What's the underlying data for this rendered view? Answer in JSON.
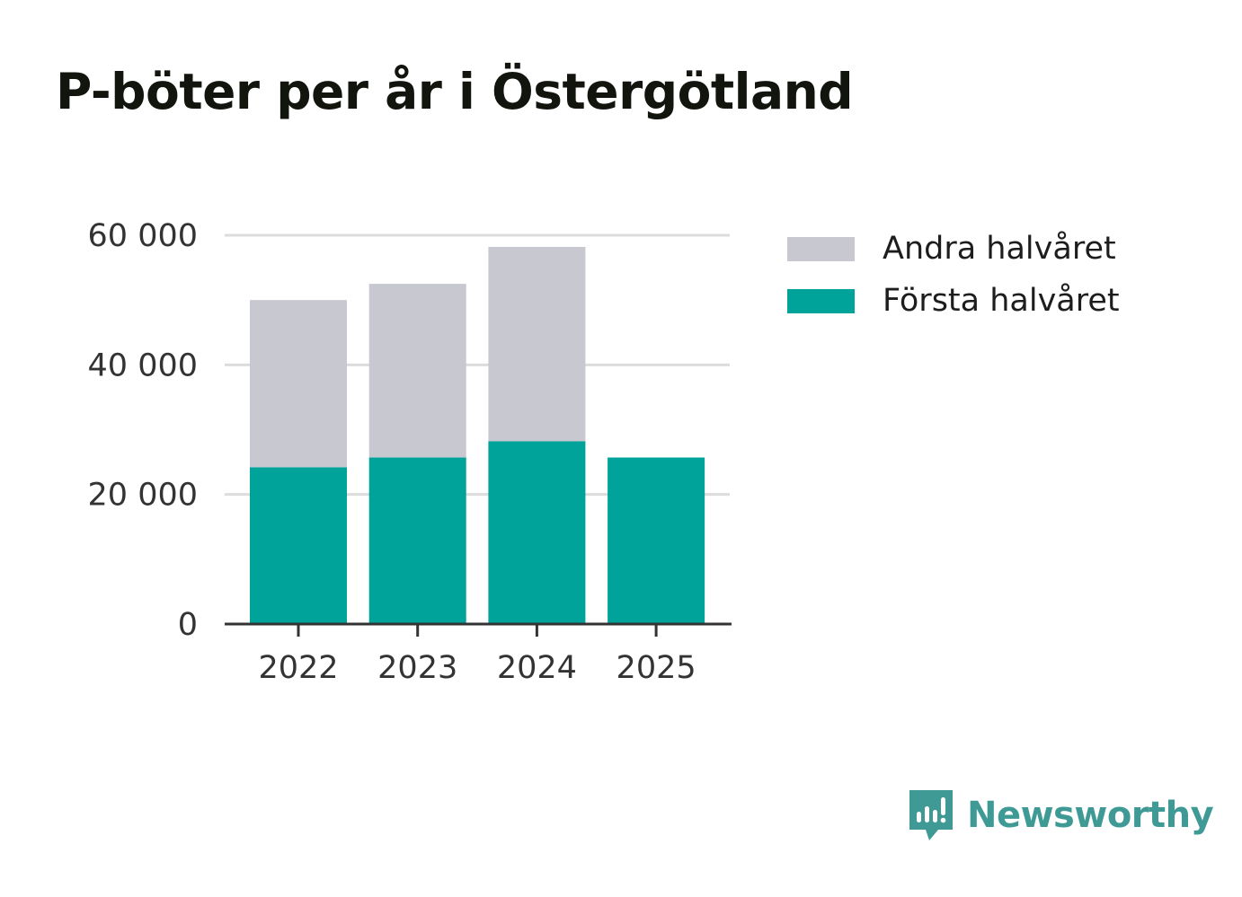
{
  "chart_data": {
    "type": "bar",
    "stacked": true,
    "title": "P-böter per år i Östergötland",
    "categories": [
      "2022",
      "2023",
      "2024",
      "2025"
    ],
    "series": [
      {
        "name": "Första halvåret",
        "color": "#00a39a",
        "values": [
          24200,
          25700,
          28200,
          25700
        ]
      },
      {
        "name": "Andra halvåret",
        "color": "#c8c8d0",
        "values": [
          25800,
          26800,
          30000,
          0
        ]
      }
    ],
    "ylim": [
      0,
      60000
    ],
    "yticks": [
      0,
      20000,
      40000,
      60000
    ],
    "ytick_labels": [
      "0",
      "20 000",
      "40 000",
      "60 000"
    ],
    "grid": true,
    "legend": [
      "Andra halvåret",
      "Första halvåret"
    ],
    "legend_position": "top-right",
    "xlabel": "",
    "ylabel": ""
  },
  "brand": {
    "name": "Newsworthy",
    "icon": "newsworthy-logo-icon",
    "color": "#3f9a96"
  }
}
